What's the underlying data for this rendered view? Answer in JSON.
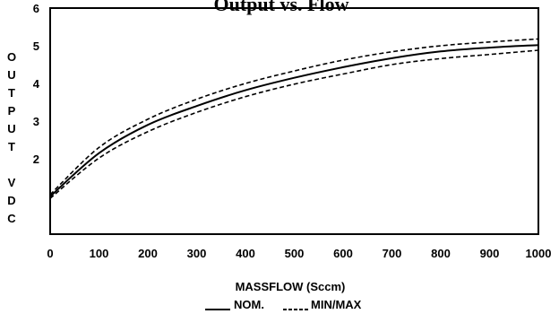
{
  "chart_data": {
    "type": "line",
    "title": "Output vs. Flow",
    "xlabel": "MASSFLOW (Sccm)",
    "ylabel": "OUTPUT VDC",
    "xlim": [
      0,
      1000
    ],
    "ylim": [
      0,
      6
    ],
    "x_ticks": [
      0,
      100,
      200,
      300,
      400,
      500,
      600,
      700,
      800,
      900,
      1000
    ],
    "y_ticks": [
      2,
      3,
      4,
      5,
      6
    ],
    "grid": false,
    "legend_position": "bottom-center",
    "x": [
      0,
      100,
      200,
      300,
      400,
      500,
      600,
      700,
      800,
      900,
      1000
    ],
    "series": [
      {
        "name": "NOM.",
        "style": "solid",
        "values": [
          1.0,
          2.15,
          2.9,
          3.4,
          3.82,
          4.15,
          4.43,
          4.67,
          4.85,
          4.95,
          5.02
        ]
      },
      {
        "name": "MIN/MAX",
        "style": "dashed",
        "values": [
          1.05,
          2.3,
          3.05,
          3.58,
          4.0,
          4.33,
          4.62,
          4.84,
          5.0,
          5.1,
          5.18
        ]
      },
      {
        "name": "MIN/MAX",
        "style": "dashed",
        "values": [
          0.95,
          2.02,
          2.72,
          3.23,
          3.65,
          3.98,
          4.25,
          4.5,
          4.66,
          4.77,
          4.88
        ]
      }
    ],
    "legend": [
      {
        "label": "NOM.",
        "style": "solid"
      },
      {
        "label": "MIN/MAX",
        "style": "dashed"
      }
    ]
  }
}
